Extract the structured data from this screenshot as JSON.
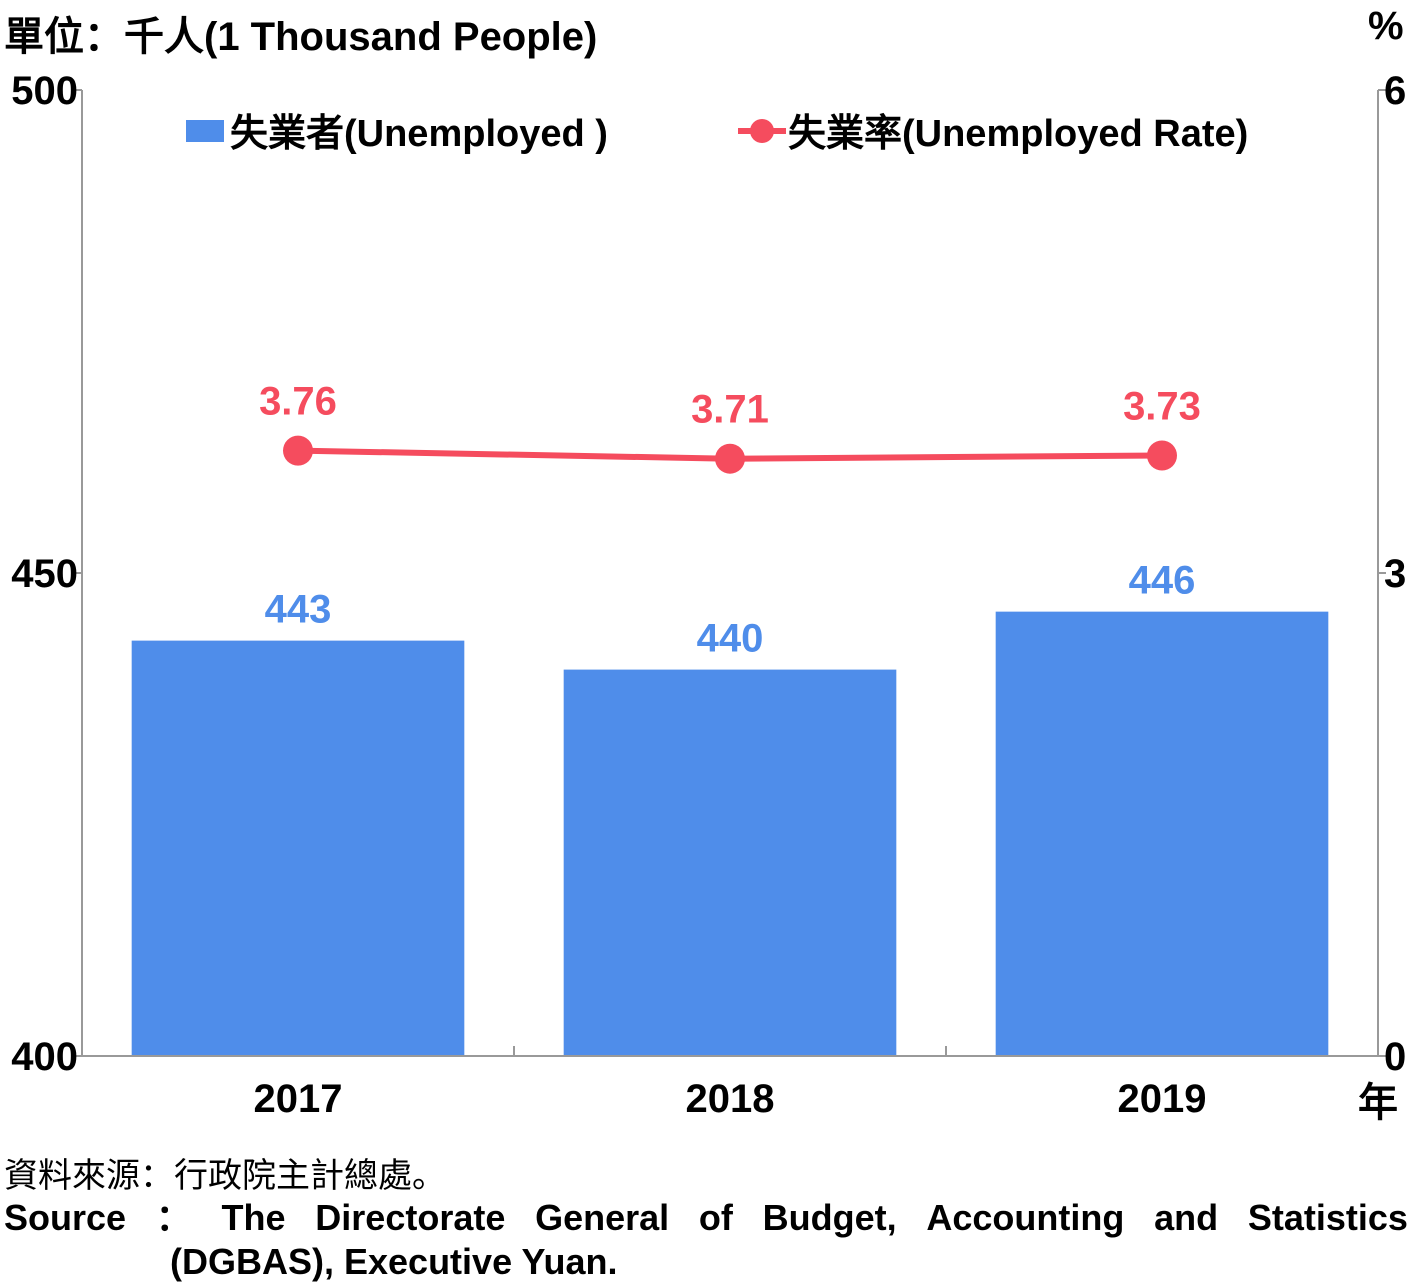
{
  "unit_left": "單位：千人(1 Thousand People)",
  "unit_right": "%",
  "year_unit": "年",
  "source": {
    "zh": "資料來源：行政院主計總處。",
    "en_words": [
      "Source",
      "：",
      "The",
      "Directorate",
      "General",
      "of",
      "Budget,",
      "Accounting",
      "and",
      "Statistics"
    ],
    "en_line2": "(DGBAS), Executive Yuan."
  },
  "chart_data": {
    "type": "bar",
    "categories": [
      "2017",
      "2018",
      "2019"
    ],
    "series": [
      {
        "name": "失業者(Unemployed )",
        "type": "bar",
        "axis": "left",
        "values": [
          443,
          440,
          446
        ],
        "color": "#4f8dea",
        "label_color": "#4f8dea"
      },
      {
        "name": "失業率(Unemployed Rate)",
        "type": "line",
        "axis": "right",
        "values": [
          3.76,
          3.71,
          3.73
        ],
        "color": "#f54c5e",
        "label_color": "#f54c5e"
      }
    ],
    "y_left": {
      "min": 400,
      "max": 500,
      "ticks": [
        "400",
        "450",
        "500"
      ]
    },
    "y_right": {
      "min": 0,
      "max": 6,
      "ticks": [
        "0",
        "3",
        "6"
      ]
    },
    "legend_position": "top",
    "grid": false
  }
}
